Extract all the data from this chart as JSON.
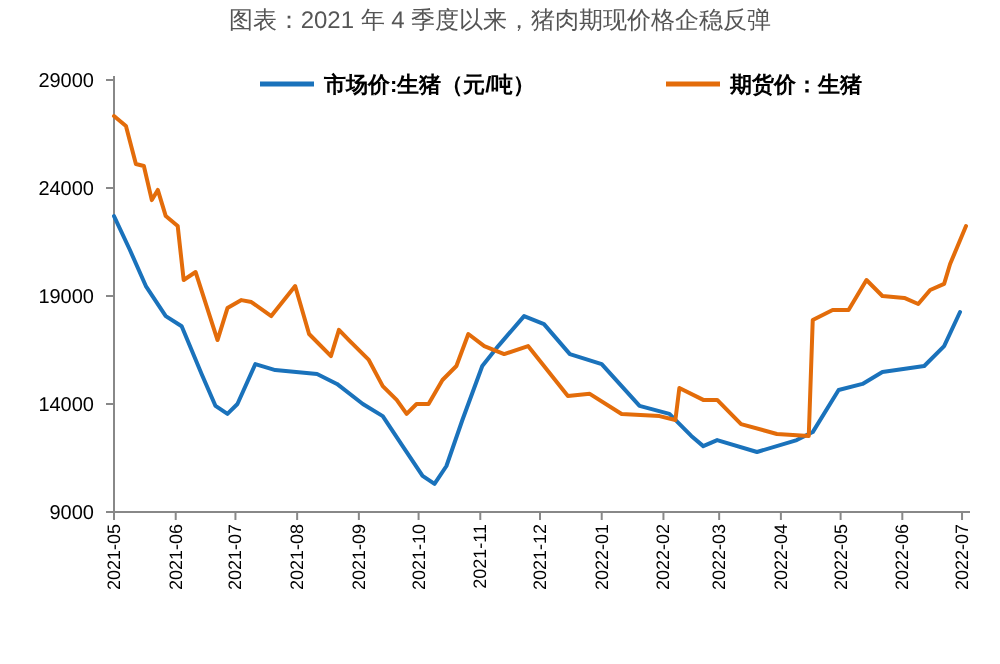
{
  "chart_data": {
    "type": "line",
    "title": "图表：2021 年 4 季度以来，猪肉期现价格企稳反弹",
    "xlim": [
      "2021-05-01",
      "2022-07-05"
    ],
    "xticks": [
      "2021-05",
      "2021-06",
      "2021-07",
      "2021-08",
      "2021-09",
      "2021-10",
      "2021-11",
      "2021-12",
      "2022-01",
      "2022-02",
      "2022-03",
      "2022-04",
      "2022-05",
      "2022-06",
      "2022-07"
    ],
    "ylim": [
      9000,
      29000
    ],
    "yticks": [
      9000,
      14000,
      19000,
      24000,
      29000
    ],
    "grid": false,
    "legend": "top",
    "marker": "none",
    "line_style": "solid",
    "series": [
      {
        "name": "市场价:生猪（元/吨）",
        "color": "#1a72bb",
        "x": [
          "2021-05-01",
          "2021-05-09",
          "2021-05-17",
          "2021-05-27",
          "2021-06-04",
          "2021-06-14",
          "2021-06-21",
          "2021-06-27",
          "2021-07-02",
          "2021-07-11",
          "2021-07-21",
          "2021-08-11",
          "2021-08-21",
          "2021-09-03",
          "2021-09-13",
          "2021-09-23",
          "2021-10-03",
          "2021-10-09",
          "2021-10-15",
          "2021-10-23",
          "2021-11-02",
          "2021-11-10",
          "2021-11-23",
          "2021-12-03",
          "2021-12-16",
          "2022-01-01",
          "2022-01-20",
          "2022-02-04",
          "2022-02-15",
          "2022-02-21",
          "2022-02-28",
          "2022-03-20",
          "2022-04-09",
          "2022-04-17",
          "2022-04-30",
          "2022-05-12",
          "2022-05-22",
          "2022-06-12",
          "2022-06-22",
          "2022-06-30"
        ],
        "values": [
          22700,
          21130,
          19460,
          18070,
          17600,
          15390,
          13910,
          13540,
          14000,
          15850,
          15570,
          15390,
          14930,
          14000,
          13440,
          12050,
          10670,
          10300,
          11130,
          13260,
          15760,
          16680,
          18070,
          17700,
          16310,
          15850,
          13910,
          13540,
          12520,
          12050,
          12330,
          11780,
          12330,
          12700,
          14650,
          14930,
          15480,
          15760,
          16680,
          18260
        ]
      },
      {
        "name": "期货价：生猪",
        "color": "#e36c0a",
        "x": [
          "2021-05-01",
          "2021-05-07",
          "2021-05-12",
          "2021-05-16",
          "2021-05-20",
          "2021-05-23",
          "2021-05-27",
          "2021-06-02",
          "2021-06-05",
          "2021-06-11",
          "2021-06-22",
          "2021-06-27",
          "2021-07-04",
          "2021-07-09",
          "2021-07-19",
          "2021-07-31",
          "2021-08-07",
          "2021-08-18",
          "2021-08-22",
          "2021-08-27",
          "2021-09-06",
          "2021-09-13",
          "2021-09-20",
          "2021-09-25",
          "2021-09-30",
          "2021-10-06",
          "2021-10-13",
          "2021-10-20",
          "2021-10-26",
          "2021-11-03",
          "2021-11-13",
          "2021-11-25",
          "2021-12-03",
          "2021-12-15",
          "2021-12-26",
          "2022-01-11",
          "2022-01-30",
          "2022-02-07",
          "2022-02-09",
          "2022-02-21",
          "2022-02-28",
          "2022-03-12",
          "2022-03-30",
          "2022-04-15",
          "2022-04-17",
          "2022-04-27",
          "2022-05-05",
          "2022-05-14",
          "2022-05-22",
          "2022-06-02",
          "2022-06-09",
          "2022-06-15",
          "2022-06-22",
          "2022-06-25",
          "2022-07-03"
        ],
        "values": [
          27330,
          26870,
          25110,
          25020,
          23440,
          23910,
          22700,
          22240,
          19740,
          20110,
          16960,
          18440,
          18810,
          18720,
          18070,
          19460,
          17240,
          16220,
          17430,
          16960,
          16040,
          14830,
          14190,
          13540,
          14000,
          14000,
          15110,
          15760,
          17240,
          16680,
          16310,
          16680,
          15760,
          14370,
          14470,
          13540,
          13440,
          13260,
          14740,
          14190,
          14190,
          13070,
          12610,
          12520,
          17890,
          18350,
          18350,
          19740,
          19000,
          18910,
          18630,
          19280,
          19560,
          20480,
          22240
        ]
      }
    ]
  }
}
